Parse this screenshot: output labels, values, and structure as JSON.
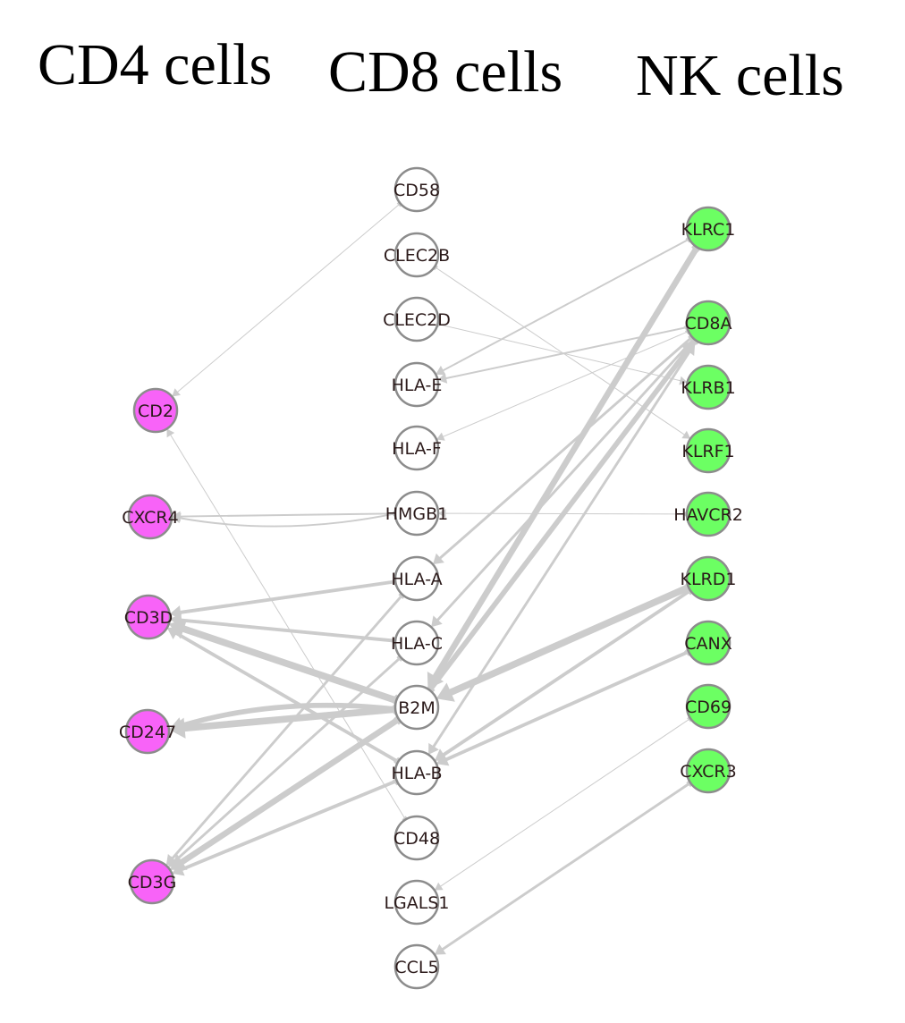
{
  "titles": {
    "cd4": "CD4 cells",
    "cd8": "CD8 cells",
    "nk": "NK cells"
  },
  "colors": {
    "cd4": "#f863f8",
    "cd8": "#ffffff",
    "nk": "#6cff63",
    "edge": "#cccccc",
    "border": "#8c8c8c"
  },
  "nodes": [
    {
      "id": "CD2",
      "label": "CD2",
      "group": "cd4"
    },
    {
      "id": "CXCR4",
      "label": "CXCR4",
      "group": "cd4"
    },
    {
      "id": "CD3D",
      "label": "CD3D",
      "group": "cd4"
    },
    {
      "id": "CD247",
      "label": "CD247",
      "group": "cd4"
    },
    {
      "id": "CD3G",
      "label": "CD3G",
      "group": "cd4"
    },
    {
      "id": "CD58",
      "label": "CD58",
      "group": "cd8"
    },
    {
      "id": "CLEC2B",
      "label": "CLEC2B",
      "group": "cd8"
    },
    {
      "id": "CLEC2D",
      "label": "CLEC2D",
      "group": "cd8"
    },
    {
      "id": "HLA-E",
      "label": "HLA-E",
      "group": "cd8"
    },
    {
      "id": "HLA-F",
      "label": "HLA-F",
      "group": "cd8"
    },
    {
      "id": "HMGB1",
      "label": "HMGB1",
      "group": "cd8"
    },
    {
      "id": "HLA-A",
      "label": "HLA-A",
      "group": "cd8"
    },
    {
      "id": "HLA-C",
      "label": "HLA-C",
      "group": "cd8"
    },
    {
      "id": "B2M",
      "label": "B2M",
      "group": "cd8"
    },
    {
      "id": "HLA-B",
      "label": "HLA-B",
      "group": "cd8"
    },
    {
      "id": "CD48",
      "label": "CD48",
      "group": "cd8"
    },
    {
      "id": "LGALS1",
      "label": "LGALS1",
      "group": "cd8"
    },
    {
      "id": "CCL5",
      "label": "CCL5",
      "group": "cd8"
    },
    {
      "id": "KLRC1",
      "label": "KLRC1",
      "group": "nk"
    },
    {
      "id": "CD8A",
      "label": "CD8A",
      "group": "nk"
    },
    {
      "id": "KLRB1",
      "label": "KLRB1",
      "group": "nk"
    },
    {
      "id": "KLRF1",
      "label": "KLRF1",
      "group": "nk"
    },
    {
      "id": "HAVCR2",
      "label": "HAVCR2",
      "group": "nk"
    },
    {
      "id": "KLRD1",
      "label": "KLRD1",
      "group": "nk"
    },
    {
      "id": "CANX",
      "label": "CANX",
      "group": "nk"
    },
    {
      "id": "CD69",
      "label": "CD69",
      "group": "nk"
    },
    {
      "id": "CXCR3",
      "label": "CXCR3",
      "group": "nk"
    }
  ],
  "edges": [
    {
      "from": "CD58",
      "to": "CD2",
      "weight": 1
    },
    {
      "from": "CD48",
      "to": "CD2",
      "weight": 1
    },
    {
      "from": "CLEC2B",
      "to": "KLRF1",
      "weight": 1
    },
    {
      "from": "CLEC2D",
      "to": "KLRB1",
      "weight": 1
    },
    {
      "from": "CD8A",
      "to": "HLA-F",
      "weight": 1
    },
    {
      "from": "HMGB1",
      "to": "CXCR4",
      "weight": 2
    },
    {
      "from": "HMGB1",
      "to": "CXCR4",
      "weight": 2,
      "curve": -24
    },
    {
      "from": "HAVCR2",
      "to": "HMGB1",
      "weight": 1
    },
    {
      "from": "KLRC1",
      "to": "HLA-E",
      "weight": 2
    },
    {
      "from": "CD8A",
      "to": "HLA-E",
      "weight": 2
    },
    {
      "from": "CD8A",
      "to": "HLA-A",
      "weight": 3
    },
    {
      "from": "CD8A",
      "to": "HLA-C",
      "weight": 3
    },
    {
      "from": "CD8A",
      "to": "HLA-B",
      "weight": 3
    },
    {
      "from": "KLRC1",
      "to": "B2M",
      "weight": 7
    },
    {
      "from": "B2M",
      "to": "CD8A",
      "weight": 6
    },
    {
      "from": "KLRD1",
      "to": "B2M",
      "weight": 8
    },
    {
      "from": "KLRD1",
      "to": "HLA-B",
      "weight": 4
    },
    {
      "from": "CANX",
      "to": "HLA-B",
      "weight": 4
    },
    {
      "from": "HLA-A",
      "to": "CD3D",
      "weight": 4
    },
    {
      "from": "HLA-C",
      "to": "CD3D",
      "weight": 4
    },
    {
      "from": "B2M",
      "to": "CD3D",
      "weight": 8
    },
    {
      "from": "HLA-B",
      "to": "CD3D",
      "weight": 4
    },
    {
      "from": "B2M",
      "to": "CD247",
      "weight": 8
    },
    {
      "from": "B2M",
      "to": "CD247",
      "weight": 6,
      "curve": 26
    },
    {
      "from": "HLA-A",
      "to": "CD3G",
      "weight": 3
    },
    {
      "from": "HLA-C",
      "to": "CD3G",
      "weight": 3
    },
    {
      "from": "B2M",
      "to": "CD3G",
      "weight": 7
    },
    {
      "from": "HLA-B",
      "to": "CD3G",
      "weight": 4
    },
    {
      "from": "CD69",
      "to": "LGALS1",
      "weight": 1
    },
    {
      "from": "CXCR3",
      "to": "CCL5",
      "weight": 3
    }
  ]
}
